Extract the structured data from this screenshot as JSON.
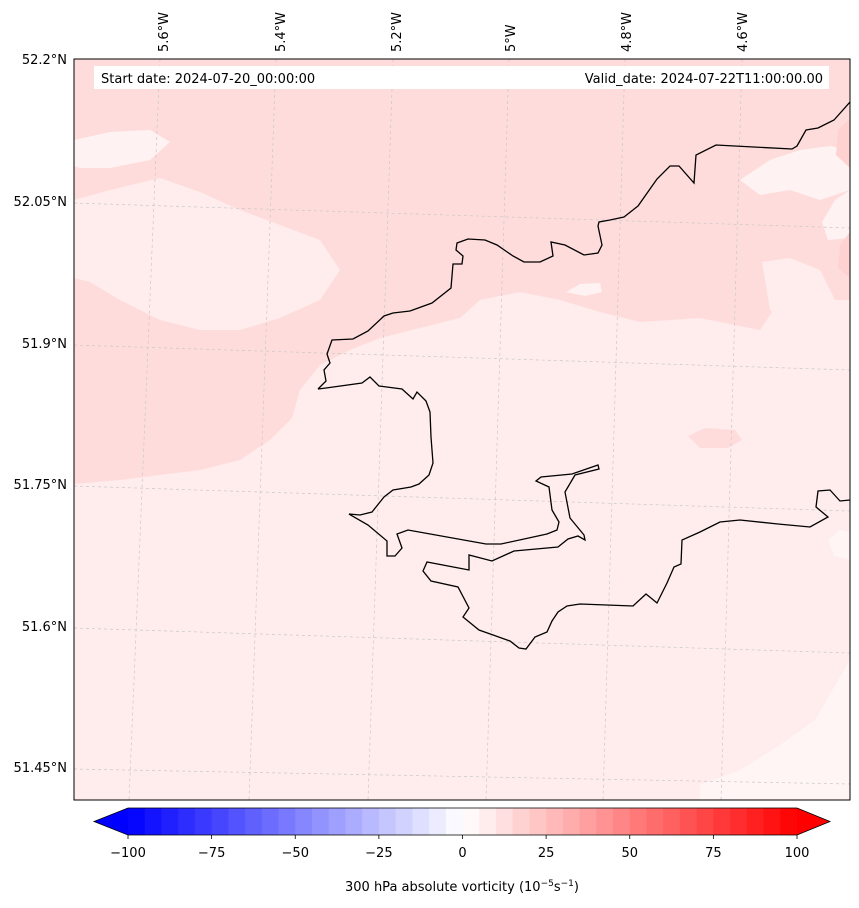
{
  "map": {
    "start_date": "Start date: 2024-07-20_00:00:00",
    "valid_date": "Valid_date: 2024-07-22T11:00:00.00",
    "lon_labels": [
      "5.6°W",
      "5.4°W",
      "5.2°W",
      "5°W",
      "4.8°W",
      "4.6°W"
    ],
    "lat_labels": [
      "52.2°N",
      "52.05°N",
      "51.9°N",
      "51.75°N",
      "51.6°N",
      "51.45°N"
    ],
    "colors": {
      "field_base": "#ffecec",
      "field_high": "#ffdcdc",
      "field_low": "#fff4f4",
      "coastline": "#000000",
      "gridline": "#c8c8c8"
    }
  },
  "colorbar": {
    "label_main": "300 hPa absolute vorticity (10",
    "label_exp1": "−5",
    "label_mid": "s",
    "label_exp2": "−1",
    "label_end": ")",
    "min": -100,
    "max": 100,
    "step": 5,
    "ticks": [
      "−100",
      "−75",
      "−50",
      "−25",
      "0",
      "25",
      "50",
      "75",
      "100"
    ],
    "color_low": "#0000ff",
    "color_mid": "#ffffff",
    "color_high": "#ff0000"
  }
}
